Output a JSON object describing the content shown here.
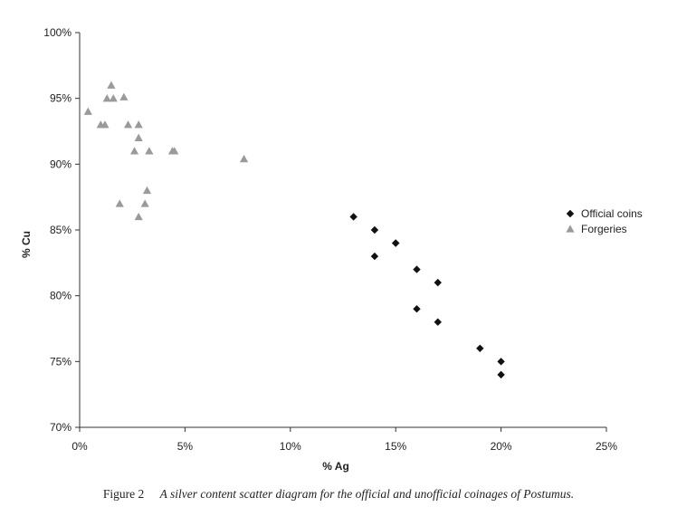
{
  "chart_data": {
    "type": "scatter",
    "xlabel": "% Ag",
    "ylabel": "% Cu",
    "xlim": [
      0,
      25
    ],
    "ylim": [
      70,
      100
    ],
    "x_ticks": [
      "0%",
      "5%",
      "10%",
      "15%",
      "20%",
      "25%"
    ],
    "y_ticks": [
      "70%",
      "75%",
      "80%",
      "85%",
      "90%",
      "95%",
      "100%"
    ],
    "grid": false,
    "legend_position": "right",
    "series": [
      {
        "name": "Official coins",
        "marker": "diamond",
        "color": "#111111",
        "points": [
          {
            "x": 13,
            "y": 86
          },
          {
            "x": 14,
            "y": 85
          },
          {
            "x": 14,
            "y": 83
          },
          {
            "x": 15,
            "y": 84
          },
          {
            "x": 15,
            "y": 84
          },
          {
            "x": 16,
            "y": 82
          },
          {
            "x": 16,
            "y": 79
          },
          {
            "x": 17,
            "y": 81
          },
          {
            "x": 17,
            "y": 78
          },
          {
            "x": 19,
            "y": 76
          },
          {
            "x": 20,
            "y": 75
          },
          {
            "x": 20,
            "y": 74
          }
        ]
      },
      {
        "name": "Forgeries",
        "marker": "triangle",
        "color": "#9a9a9a",
        "points": [
          {
            "x": 0.4,
            "y": 94
          },
          {
            "x": 1.0,
            "y": 93
          },
          {
            "x": 1.2,
            "y": 93
          },
          {
            "x": 1.3,
            "y": 95
          },
          {
            "x": 1.5,
            "y": 96
          },
          {
            "x": 1.6,
            "y": 95
          },
          {
            "x": 2.1,
            "y": 95.1
          },
          {
            "x": 2.3,
            "y": 93
          },
          {
            "x": 2.8,
            "y": 93
          },
          {
            "x": 2.8,
            "y": 92
          },
          {
            "x": 2.6,
            "y": 91
          },
          {
            "x": 3.3,
            "y": 91
          },
          {
            "x": 4.4,
            "y": 91
          },
          {
            "x": 4.5,
            "y": 91
          },
          {
            "x": 7.8,
            "y": 90.4
          },
          {
            "x": 1.9,
            "y": 87
          },
          {
            "x": 3.2,
            "y": 88
          },
          {
            "x": 3.1,
            "y": 87
          },
          {
            "x": 2.8,
            "y": 86
          }
        ]
      }
    ]
  },
  "caption": {
    "label": "Figure 2",
    "text": "A silver content scatter diagram for the official and unofficial coinages of Postumus."
  }
}
